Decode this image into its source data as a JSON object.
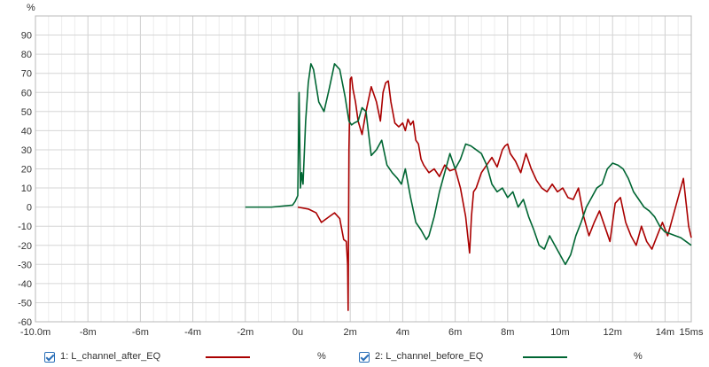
{
  "chart_data": {
    "type": "line",
    "y_unit": "%",
    "xlim": [
      -10,
      15
    ],
    "ylim": [
      -60,
      100
    ],
    "grid": true,
    "x_ticks": [
      {
        "v": -10,
        "label": "-10.0m"
      },
      {
        "v": -8,
        "label": "-8m"
      },
      {
        "v": -6,
        "label": "-6m"
      },
      {
        "v": -4,
        "label": "-4m"
      },
      {
        "v": -2,
        "label": "-2m"
      },
      {
        "v": 0,
        "label": "0u"
      },
      {
        "v": 2,
        "label": "2m"
      },
      {
        "v": 4,
        "label": "4m"
      },
      {
        "v": 6,
        "label": "6m"
      },
      {
        "v": 8,
        "label": "8m"
      },
      {
        "v": 10,
        "label": "10m"
      },
      {
        "v": 12,
        "label": "12m"
      },
      {
        "v": 14,
        "label": "14m"
      },
      {
        "v": 15,
        "label": "15ms"
      }
    ],
    "y_ticks": [
      90,
      80,
      70,
      60,
      50,
      40,
      30,
      20,
      10,
      0,
      -10,
      -20,
      -30,
      -40,
      -50,
      -60
    ],
    "series": [
      {
        "name": "1: L_channel_after_EQ",
        "unit": "%",
        "color": "#aa0000",
        "x": [
          0.0,
          0.4,
          0.7,
          0.9,
          1.2,
          1.4,
          1.6,
          1.75,
          1.85,
          1.9,
          1.92,
          1.95,
          2.0,
          2.05,
          2.1,
          2.2,
          2.3,
          2.45,
          2.6,
          2.8,
          3.0,
          3.15,
          3.25,
          3.35,
          3.45,
          3.55,
          3.7,
          3.85,
          4.0,
          4.1,
          4.2,
          4.3,
          4.4,
          4.5,
          4.6,
          4.7,
          4.8,
          5.0,
          5.2,
          5.4,
          5.6,
          5.8,
          6.0,
          6.2,
          6.4,
          6.55,
          6.62,
          6.7,
          6.8,
          7.0,
          7.2,
          7.4,
          7.6,
          7.8,
          7.9,
          8.0,
          8.1,
          8.3,
          8.5,
          8.7,
          8.9,
          9.1,
          9.3,
          9.5,
          9.7,
          9.9,
          10.1,
          10.3,
          10.5,
          10.7,
          10.9,
          11.1,
          11.3,
          11.5,
          11.7,
          11.9,
          12.1,
          12.3,
          12.5,
          12.7,
          12.9,
          13.1,
          13.3,
          13.5,
          13.7,
          13.9,
          14.1,
          14.3,
          14.5,
          14.7,
          14.9,
          15.0
        ],
        "y": [
          0,
          -1,
          -3,
          -8,
          -5,
          -3,
          -6,
          -17,
          -18,
          -30,
          -54,
          30,
          67,
          68,
          62,
          55,
          45,
          38,
          50,
          63,
          55,
          45,
          60,
          65,
          66,
          55,
          44,
          42,
          44,
          40,
          46,
          43,
          45,
          35,
          33,
          25,
          22,
          18,
          20,
          16,
          22,
          19,
          20,
          10,
          -5,
          -24,
          -5,
          8,
          10,
          18,
          22,
          26,
          21,
          30,
          32,
          33,
          28,
          24,
          18,
          28,
          20,
          14,
          10,
          8,
          12,
          8,
          10,
          5,
          4,
          10,
          -5,
          -15,
          -8,
          -2,
          -10,
          -18,
          2,
          5,
          -8,
          -15,
          -20,
          -10,
          -18,
          -22,
          -15,
          -8,
          -15,
          -5,
          5,
          15,
          -10,
          -16
        ]
      },
      {
        "name": "2: L_channel_before_EQ",
        "unit": "%",
        "color": "#006633",
        "x": [
          -2.0,
          -1.0,
          -0.2,
          -0.1,
          0.0,
          0.05,
          0.1,
          0.15,
          0.2,
          0.3,
          0.4,
          0.5,
          0.6,
          0.8,
          1.0,
          1.2,
          1.4,
          1.6,
          1.8,
          1.95,
          2.05,
          2.15,
          2.3,
          2.45,
          2.6,
          2.8,
          3.0,
          3.2,
          3.4,
          3.6,
          3.8,
          3.95,
          4.1,
          4.3,
          4.5,
          4.7,
          4.9,
          5.0,
          5.2,
          5.4,
          5.6,
          5.8,
          6.0,
          6.2,
          6.4,
          6.6,
          6.8,
          7.0,
          7.2,
          7.4,
          7.6,
          7.8,
          8.0,
          8.2,
          8.4,
          8.6,
          8.8,
          9.0,
          9.2,
          9.4,
          9.6,
          9.8,
          10.0,
          10.2,
          10.4,
          10.6,
          10.8,
          11.0,
          11.2,
          11.4,
          11.6,
          11.8,
          12.0,
          12.2,
          12.4,
          12.6,
          12.8,
          13.0,
          13.2,
          13.4,
          13.6,
          13.8,
          14.0,
          14.2,
          14.4,
          14.6,
          14.8,
          15.0
        ],
        "y": [
          0,
          0,
          1,
          3,
          6,
          60,
          10,
          18,
          12,
          45,
          65,
          75,
          72,
          55,
          50,
          62,
          75,
          72,
          58,
          45,
          43,
          44,
          45,
          52,
          50,
          27,
          30,
          35,
          22,
          18,
          15,
          12,
          20,
          5,
          -8,
          -12,
          -17,
          -15,
          -5,
          8,
          18,
          28,
          20,
          25,
          33,
          32,
          30,
          28,
          22,
          12,
          8,
          10,
          5,
          8,
          0,
          4,
          -5,
          -12,
          -20,
          -22,
          -15,
          -20,
          -25,
          -30,
          -25,
          -15,
          -8,
          0,
          5,
          10,
          12,
          20,
          23,
          22,
          20,
          15,
          8,
          4,
          0,
          -2,
          -5,
          -10,
          -13,
          -14,
          -15,
          -16,
          -18,
          -20
        ]
      }
    ]
  },
  "legend": {
    "items": [
      {
        "label": "1: L_channel_after_EQ",
        "unit": "%",
        "color": "#aa0000"
      },
      {
        "label": "2: L_channel_before_EQ",
        "unit": "%",
        "color": "#006633"
      }
    ]
  }
}
